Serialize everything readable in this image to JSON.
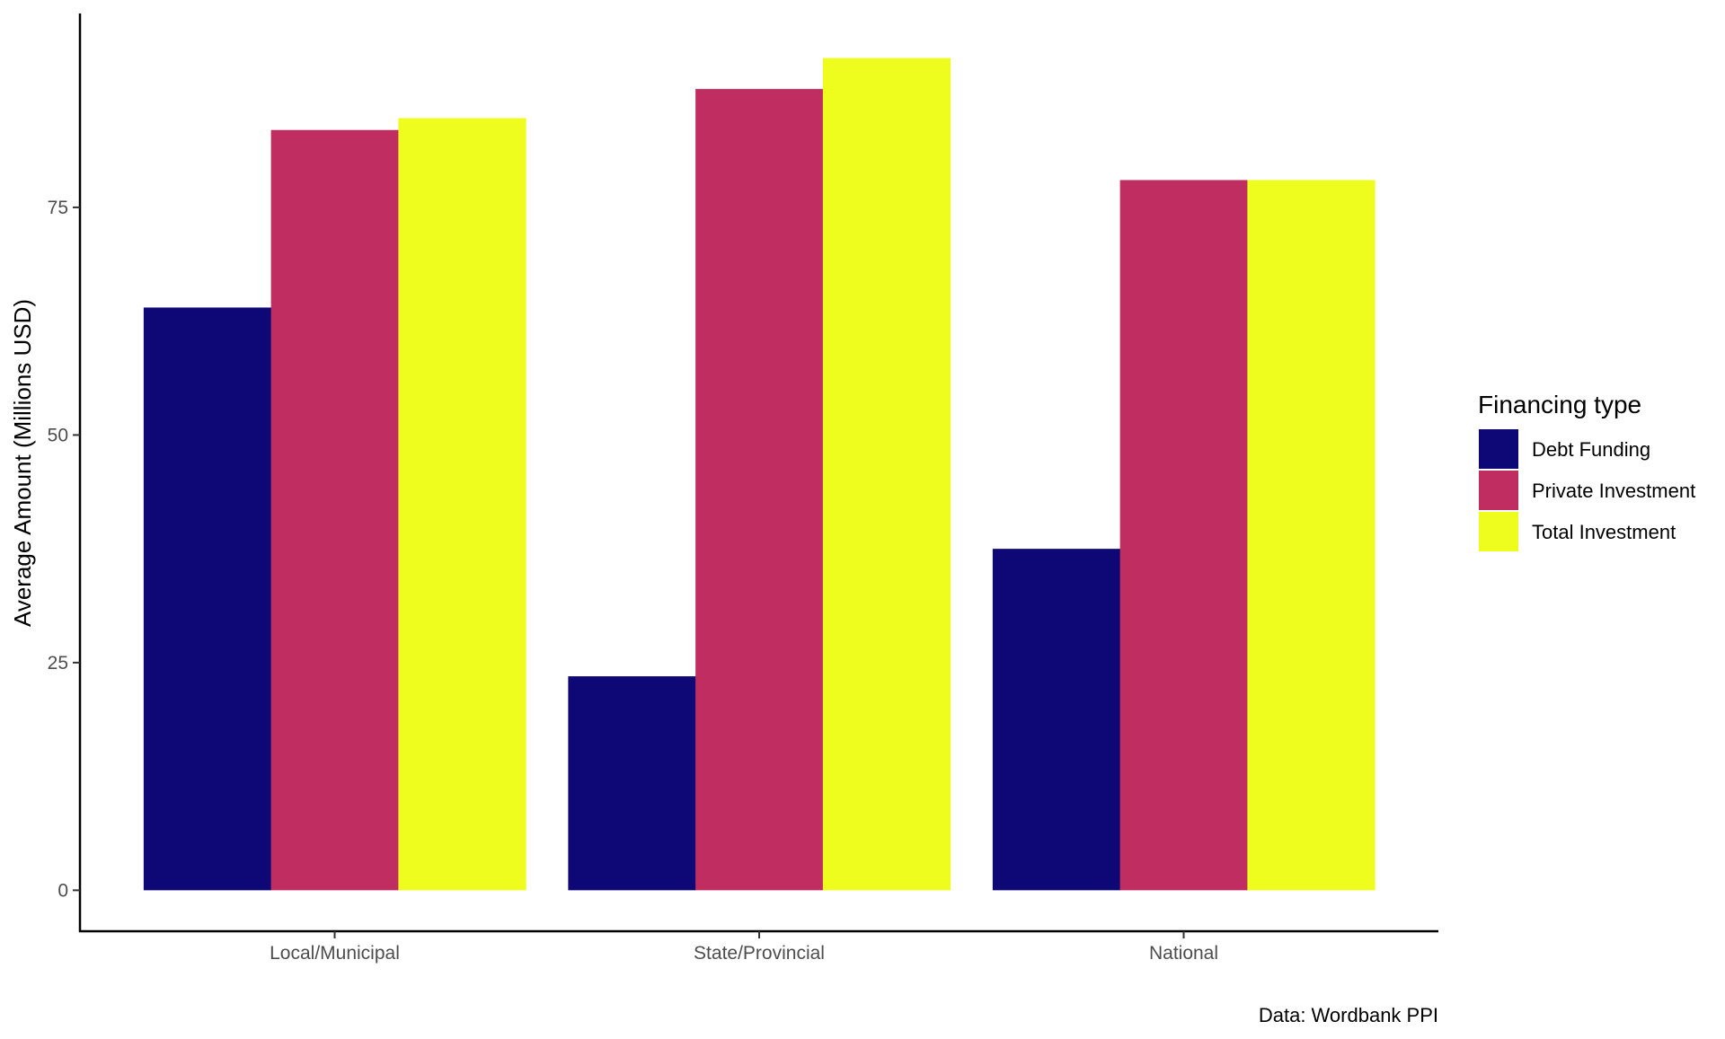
{
  "chart_data": {
    "type": "bar",
    "categories": [
      "Local/Municipal",
      "State/Provincial",
      "National"
    ],
    "series": [
      {
        "name": "Debt Funding",
        "color": "#0d0876",
        "values": [
          64.0,
          23.5,
          37.5
        ]
      },
      {
        "name": "Private Investment",
        "color": "#bf2d61",
        "values": [
          83.5,
          88.0,
          78.0
        ]
      },
      {
        "name": "Total Investment",
        "color": "#eefc1e",
        "values": [
          84.8,
          91.4,
          78.0
        ]
      }
    ],
    "ylabel": "Average Amount (Millions USD)",
    "xlabel": "",
    "ylim": [
      -4.5,
      96
    ],
    "yticks": [
      0,
      25,
      50,
      75
    ],
    "grid": false,
    "legend": {
      "title": "Financing type",
      "position": "right"
    },
    "caption": "Data: Wordbank PPI"
  }
}
